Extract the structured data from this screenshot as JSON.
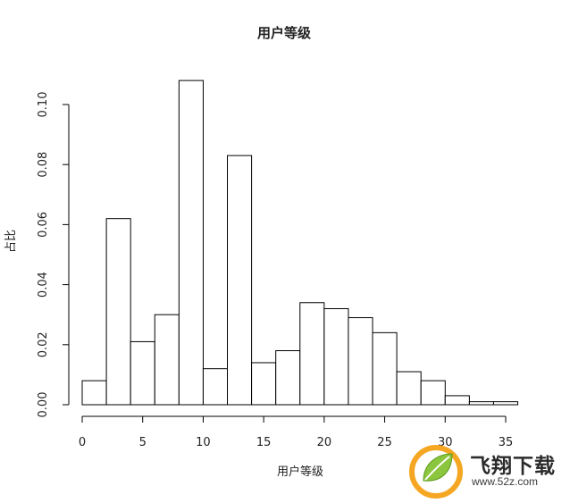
{
  "chart_data": {
    "type": "bar",
    "title": "用户等级",
    "xlabel": "用户等级",
    "ylabel": "占比",
    "xlim": [
      0,
      36
    ],
    "ylim": [
      0,
      0.11
    ],
    "x_ticks": [
      "0",
      "5",
      "10",
      "15",
      "20",
      "25",
      "30",
      "35"
    ],
    "y_ticks": [
      "0.00",
      "0.02",
      "0.04",
      "0.06",
      "0.08",
      "0.10"
    ],
    "bin_edges": [
      0,
      2,
      4,
      6,
      8,
      10,
      12,
      14,
      16,
      18,
      20,
      22,
      24,
      26,
      28,
      30,
      32,
      34,
      36
    ],
    "values": [
      0.008,
      0.062,
      0.021,
      0.03,
      0.108,
      0.012,
      0.083,
      0.014,
      0.018,
      0.034,
      0.032,
      0.029,
      0.024,
      0.011,
      0.008,
      0.003,
      0.001,
      0.001
    ],
    "grid": false,
    "bar_fill": "#ffffff",
    "bar_stroke": "#000000"
  },
  "watermark": {
    "name": "飞翔下载",
    "url": "www.52z.com",
    "leaf_color": "#8cc63f",
    "leaf_dark": "#5a9a1a",
    "accent": "#f5a623"
  }
}
